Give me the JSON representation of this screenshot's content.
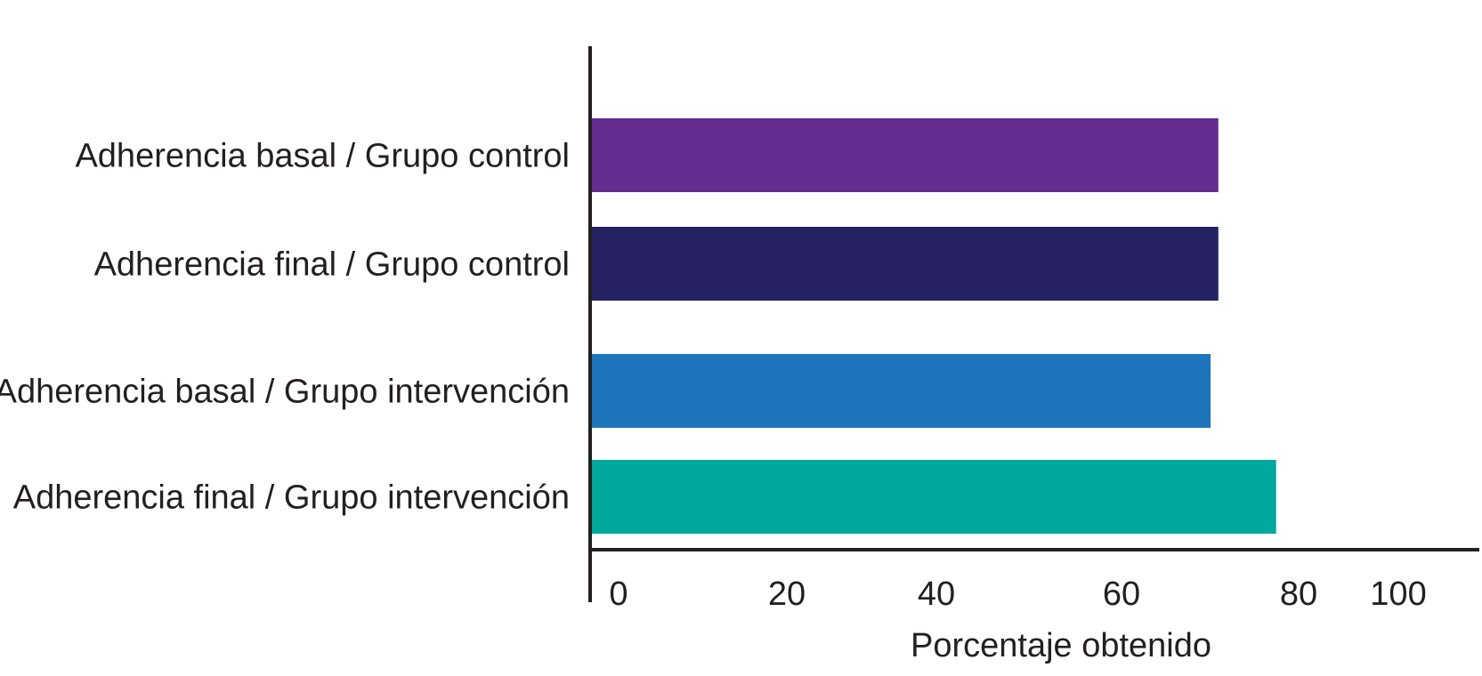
{
  "chart_data": {
    "type": "bar",
    "orientation": "horizontal",
    "categories": [
      "Adherencia basal / Grupo control",
      "Adherencia final / Grupo control",
      "Adherencia basal / Grupo intervención",
      "Adherencia final / Grupo intervención"
    ],
    "values": [
      81.5,
      81.5,
      80.5,
      89
    ],
    "colors": [
      "#662d91",
      "#262262",
      "#1f75bc",
      "#00a89e"
    ],
    "xlabel": "Porcentaje obtenido",
    "ylabel": "",
    "title": "",
    "xlim": [
      0,
      100
    ],
    "xticks": [
      "0",
      "20",
      "40",
      "60",
      "80",
      "100"
    ],
    "grid": false,
    "legend": "none"
  }
}
